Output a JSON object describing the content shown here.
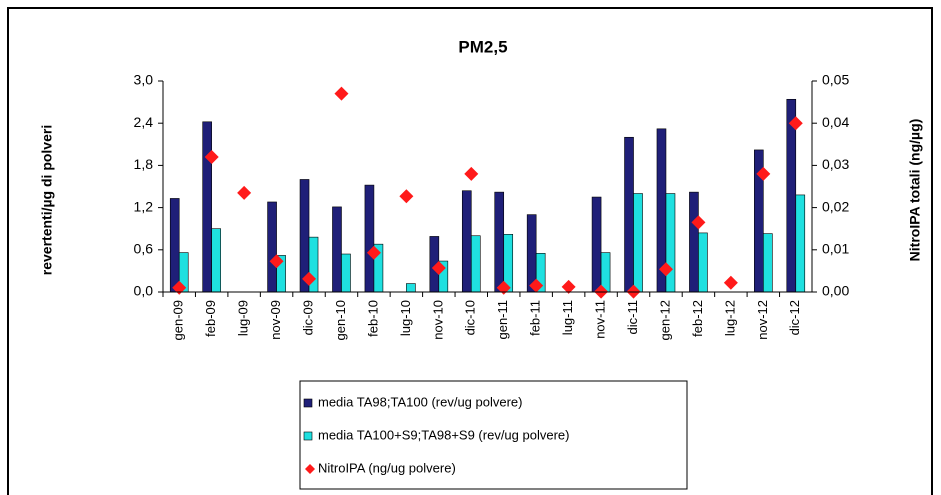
{
  "chart_data": {
    "type": "bar",
    "title": "PM2,5",
    "y_label": "revertenti/µg di  polveri",
    "y2_label": "NitroIPA totali (ng/µg)",
    "categories": [
      "gen-09",
      "feb-09",
      "lug-09",
      "nov-09",
      "dic-09",
      "gen-10",
      "feb-10",
      "lug-10",
      "nov-10",
      "dic-10",
      "gen-11",
      "feb-11",
      "lug-11",
      "nov-11",
      "dic-11",
      "gen-12",
      "feb-12",
      "lug-12",
      "nov-12",
      "dic-12"
    ],
    "series": [
      {
        "name": "media TA98;TA100 (rev/ug polvere)",
        "color": "#1f1f78",
        "values": [
          1.33,
          2.42,
          null,
          1.28,
          1.6,
          1.21,
          1.52,
          null,
          0.79,
          1.44,
          1.42,
          1.1,
          null,
          1.35,
          2.2,
          2.32,
          1.42,
          null,
          2.02,
          2.74
        ]
      },
      {
        "name": "media TA100+S9;TA98+S9 (rev/ug polvere)",
        "color": "#1fe0e0",
        "values": [
          0.56,
          0.9,
          null,
          0.52,
          0.78,
          0.54,
          0.68,
          0.12,
          0.44,
          0.8,
          0.82,
          0.55,
          null,
          0.56,
          1.4,
          1.4,
          0.84,
          null,
          0.83,
          1.38
        ]
      },
      {
        "name": "NitroIPA  (ng/ug polvere)",
        "color": "#ff1a1a",
        "axis": "y2",
        "marker": "diamond",
        "values": [
          0.001,
          0.032,
          0.0235,
          0.0073,
          0.0031,
          0.047,
          0.0093,
          0.0227,
          0.0057,
          0.028,
          0.001,
          0.0015,
          0.0012,
          0.0001,
          0.0001,
          0.0054,
          0.0165,
          0.0022,
          0.028,
          0.04
        ]
      }
    ],
    "ylim": [
      0,
      3
    ],
    "yticks": [
      {
        "value": 0,
        "label": "0,0"
      },
      {
        "value": 0.6,
        "label": "0,6"
      },
      {
        "value": 1.2,
        "label": "1,2"
      },
      {
        "value": 1.8,
        "label": "1,8"
      },
      {
        "value": 2.4,
        "label": "2,4"
      },
      {
        "value": 3,
        "label": "3,0"
      }
    ],
    "y2lim": [
      0,
      0.05
    ],
    "y2ticks": [
      {
        "value": 0,
        "label": "0,00"
      },
      {
        "value": 0.01,
        "label": "0,01"
      },
      {
        "value": 0.02,
        "label": "0,02"
      },
      {
        "value": 0.03,
        "label": "0,03"
      },
      {
        "value": 0.04,
        "label": "0,04"
      },
      {
        "value": 0.05,
        "label": "0,05"
      }
    ],
    "grid": false,
    "legend": "bottom"
  }
}
